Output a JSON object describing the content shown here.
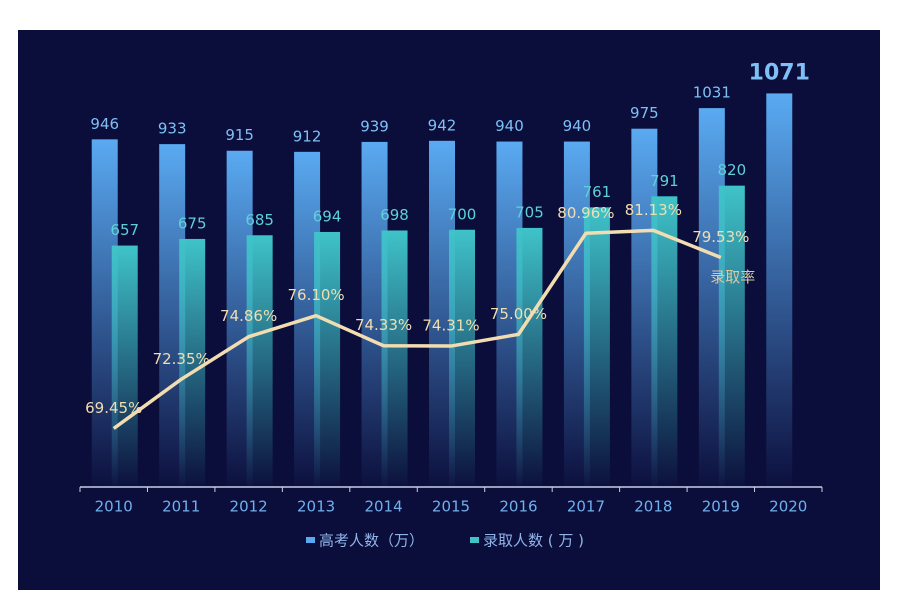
{
  "chart_data": {
    "type": "bar",
    "categories": [
      "2010",
      "2011",
      "2012",
      "2013",
      "2014",
      "2015",
      "2016",
      "2017",
      "2018",
      "2019",
      "2020"
    ],
    "series": [
      {
        "name": "高考人数（万）",
        "color": "#5aaaf2",
        "values": [
          946,
          933,
          915,
          912,
          939,
          942,
          940,
          940,
          975,
          1031,
          1071
        ]
      },
      {
        "name": "录取人数 ( 万 )",
        "color": "#3fc3c9",
        "values": [
          657,
          675,
          685,
          694,
          698,
          700,
          705,
          761,
          791,
          820,
          null
        ]
      },
      {
        "name": "录取率",
        "type": "line",
        "axis": "y2",
        "color": "#f2ddb0",
        "values": [
          69.45,
          72.35,
          74.86,
          76.1,
          74.33,
          74.31,
          75.0,
          80.96,
          81.13,
          79.53,
          null
        ],
        "value_labels": [
          "69.45%",
          "72.35%",
          "74.86%",
          "76.10%",
          "74.33%",
          "74.31%",
          "75.00%",
          "80.96%",
          "81.13%",
          "79.53%",
          null
        ]
      }
    ],
    "ylim": [
      0,
      1200
    ],
    "y2lim": [
      66,
      92
    ],
    "legend": "bottom"
  }
}
